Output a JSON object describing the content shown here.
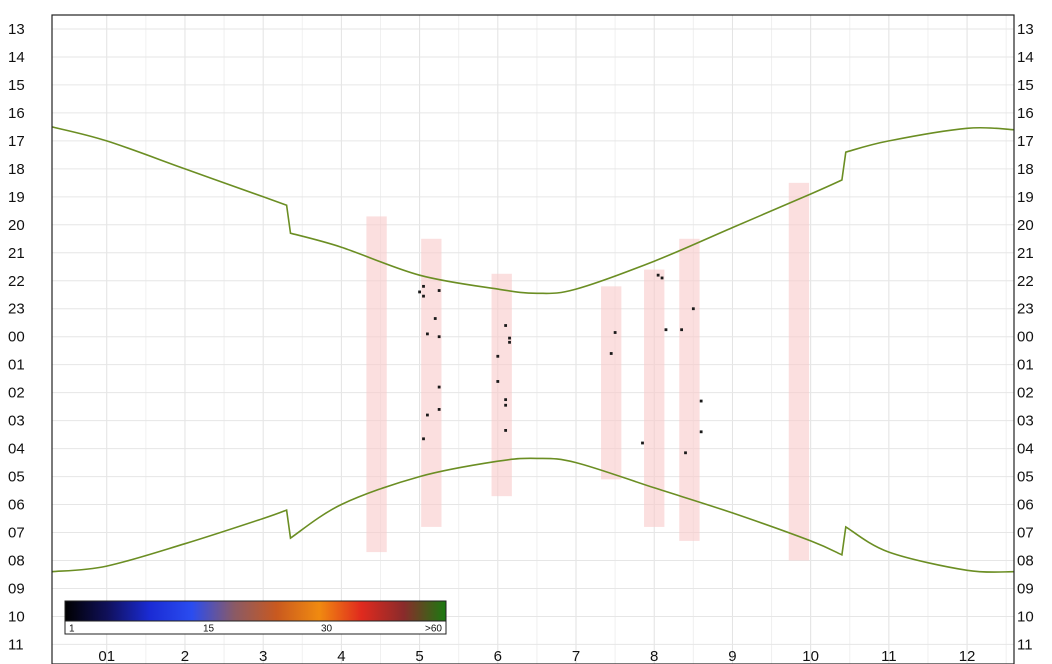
{
  "chart_data": {
    "type": "scatter",
    "title": "",
    "xlabel": "",
    "ylabel": "",
    "x_tick_labels": [
      "01",
      "2",
      "3",
      "4",
      "5",
      "6",
      "7",
      "8",
      "9",
      "10",
      "11",
      "12"
    ],
    "y_tick_labels": [
      "13",
      "14",
      "15",
      "16",
      "17",
      "18",
      "19",
      "20",
      "21",
      "22",
      "23",
      "00",
      "01",
      "02",
      "03",
      "04",
      "05",
      "06",
      "07",
      "08",
      "09",
      "10",
      "11"
    ],
    "xlim": [
      0.3,
      12.6
    ],
    "ylim_hours_after_noon": [
      0.5,
      23.7
    ],
    "grid": true,
    "series": [
      {
        "kind": "curve",
        "color": "#6b8e23",
        "x": [
          0.3,
          1.0,
          2.0,
          3.0,
          3.3,
          3.35,
          4.0,
          5.0,
          6.0,
          6.5,
          7.0,
          8.0,
          9.0,
          10.0,
          10.4,
          10.45,
          11.0,
          12.0,
          12.6
        ],
        "y": [
          4.5,
          5.0,
          6.0,
          7.0,
          7.3,
          8.3,
          8.8,
          9.8,
          10.3,
          10.45,
          10.3,
          9.3,
          8.1,
          6.9,
          6.4,
          5.4,
          5.0,
          4.55,
          4.6
        ]
      },
      {
        "kind": "curve",
        "color": "#6b8e23",
        "x": [
          0.3,
          1.0,
          2.0,
          3.0,
          3.3,
          3.35,
          4.0,
          5.0,
          6.0,
          6.5,
          7.0,
          8.0,
          9.0,
          10.0,
          10.4,
          10.45,
          11.0,
          12.0,
          12.6
        ],
        "y": [
          20.4,
          20.2,
          19.4,
          18.5,
          18.2,
          19.2,
          18.0,
          17.0,
          16.45,
          16.35,
          16.5,
          17.4,
          18.3,
          19.3,
          19.8,
          18.8,
          19.7,
          20.35,
          20.4
        ]
      }
    ],
    "bands": [
      {
        "x": 4.45,
        "y_range": [
          7.7,
          19.7
        ]
      },
      {
        "x": 5.15,
        "y_range": [
          8.5,
          18.8
        ]
      },
      {
        "x": 6.05,
        "y_range": [
          9.75,
          17.7
        ]
      },
      {
        "x": 7.45,
        "y_range": [
          10.2,
          17.1
        ]
      },
      {
        "x": 8.0,
        "y_range": [
          9.6,
          18.8
        ]
      },
      {
        "x": 8.45,
        "y_range": [
          8.5,
          19.3
        ]
      },
      {
        "x": 9.85,
        "y_range": [
          6.5,
          20.0
        ]
      }
    ],
    "points": [
      {
        "x": 5.05,
        "y": 10.2
      },
      {
        "x": 5.0,
        "y": 10.4
      },
      {
        "x": 5.05,
        "y": 10.55
      },
      {
        "x": 5.25,
        "y": 10.35
      },
      {
        "x": 5.2,
        "y": 11.35
      },
      {
        "x": 5.1,
        "y": 11.9
      },
      {
        "x": 5.25,
        "y": 12.0
      },
      {
        "x": 5.25,
        "y": 13.8
      },
      {
        "x": 5.25,
        "y": 14.6
      },
      {
        "x": 5.1,
        "y": 14.8
      },
      {
        "x": 5.05,
        "y": 15.65
      },
      {
        "x": 6.1,
        "y": 11.6
      },
      {
        "x": 6.15,
        "y": 12.05
      },
      {
        "x": 6.15,
        "y": 12.2
      },
      {
        "x": 6.0,
        "y": 12.7
      },
      {
        "x": 6.0,
        "y": 13.6
      },
      {
        "x": 6.1,
        "y": 14.25
      },
      {
        "x": 6.1,
        "y": 14.45
      },
      {
        "x": 6.1,
        "y": 15.35
      },
      {
        "x": 7.5,
        "y": 11.85
      },
      {
        "x": 7.45,
        "y": 12.6
      },
      {
        "x": 8.05,
        "y": 9.8
      },
      {
        "x": 8.1,
        "y": 9.9
      },
      {
        "x": 8.15,
        "y": 11.75
      },
      {
        "x": 8.35,
        "y": 11.75
      },
      {
        "x": 8.5,
        "y": 11.0
      },
      {
        "x": 8.6,
        "y": 14.3
      },
      {
        "x": 8.6,
        "y": 15.4
      },
      {
        "x": 7.85,
        "y": 15.8
      },
      {
        "x": 8.4,
        "y": 16.15
      }
    ],
    "colorbar": {
      "stops": [
        "#000000",
        "#10105a",
        "#1a2bd4",
        "#2a4cf0",
        "#8a5a66",
        "#c9591f",
        "#f08a10",
        "#e02a1e",
        "#8a2b2b",
        "#1a7a10"
      ],
      "labels": [
        "1",
        "15",
        "30",
        ">60"
      ]
    }
  }
}
